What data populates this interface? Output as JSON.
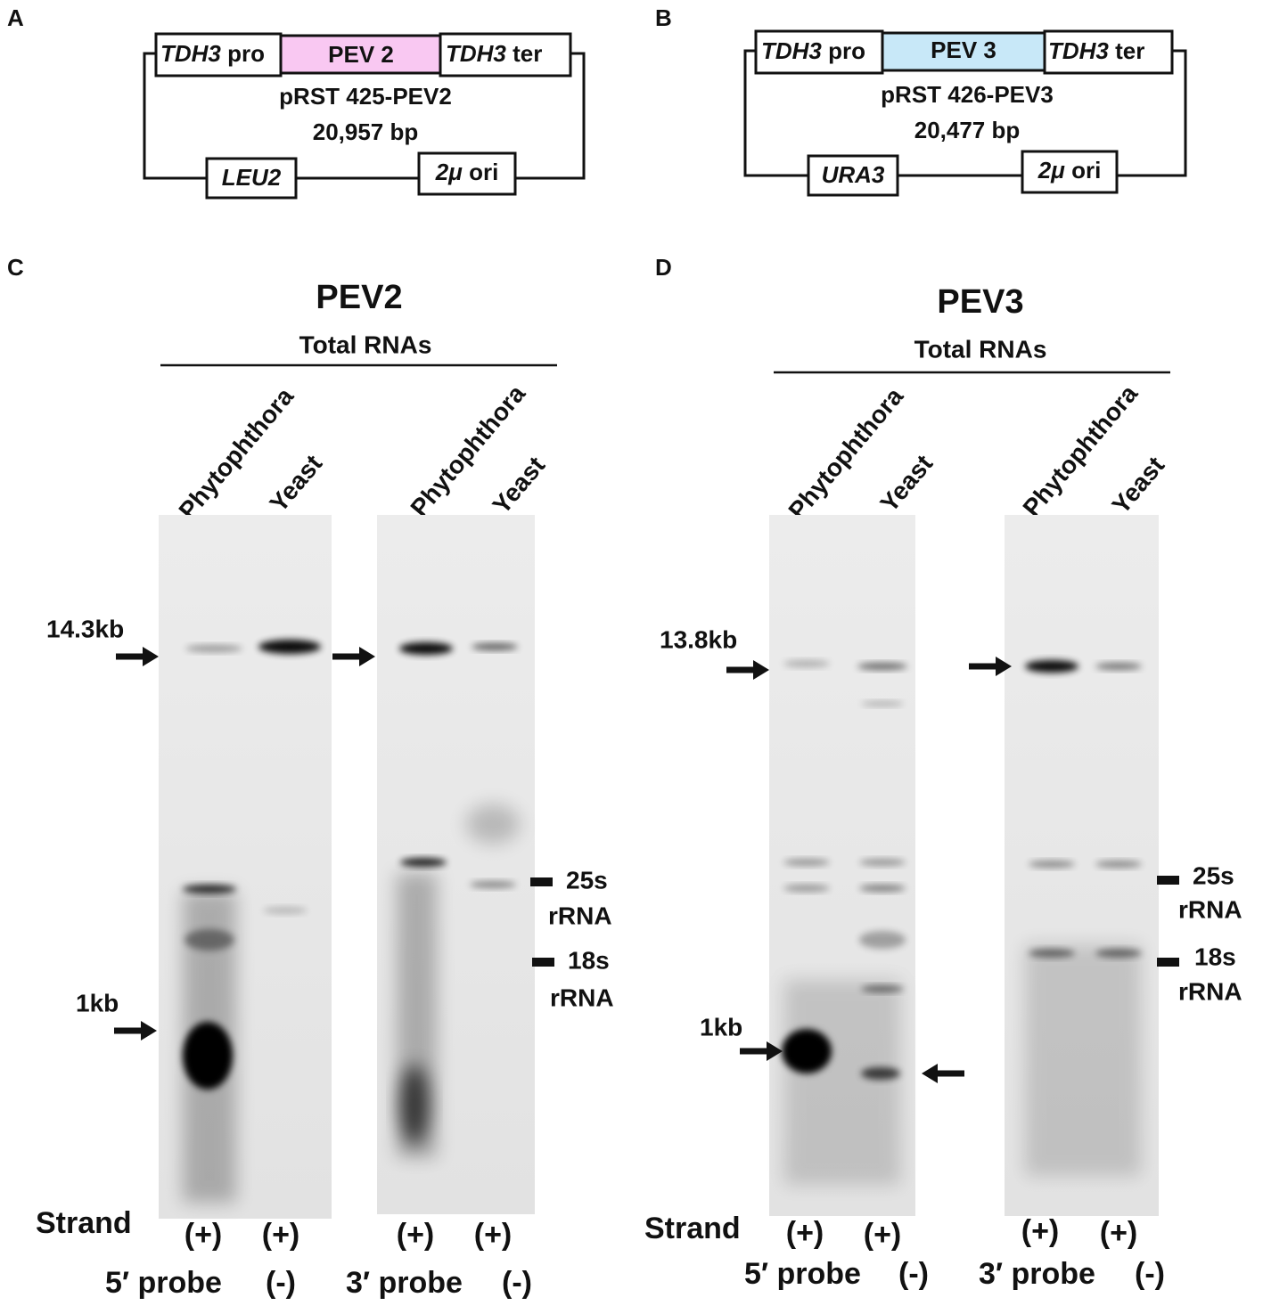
{
  "panels": [
    {
      "letter": "A",
      "promoter": {
        "gene": "TDH3",
        "suffix": "pro"
      },
      "insert": "PEV 2",
      "terminator": {
        "gene": "TDH3",
        "suffix": "ter"
      },
      "plasmid": "pRST 425-PEV2",
      "size": "20,957 bp",
      "marker": "LEU2",
      "origin": {
        "prefix": "2μ",
        "suffix": "ori"
      }
    },
    {
      "letter": "B",
      "promoter": {
        "gene": "TDH3",
        "suffix": "pro"
      },
      "insert": "PEV 3",
      "terminator": {
        "gene": "TDH3",
        "suffix": "ter"
      },
      "plasmid": "pRST 426-PEV3",
      "size": "20,477 bp",
      "marker": "URA3",
      "origin": {
        "prefix": "2μ",
        "suffix": "ori"
      }
    }
  ],
  "blots": [
    {
      "letter": "C",
      "title": "PEV2",
      "subtitle": "Total RNAs",
      "lanes": [
        "Phytophthora",
        "Yeast",
        "Phytophthora",
        "Yeast"
      ],
      "size_markers": [
        "14.3kb",
        "1kb"
      ],
      "rrna": [
        {
          "name": "25s",
          "label": "rRNA"
        },
        {
          "name": "18s",
          "label": "rRNA"
        }
      ],
      "strand_label": "Strand",
      "strands": [
        "(+)",
        "(+)",
        "(+)",
        "(+)"
      ],
      "probes": [
        {
          "name": "5′ probe",
          "sign": "(-)"
        },
        {
          "name": "3′ probe",
          "sign": "(-)"
        }
      ]
    },
    {
      "letter": "D",
      "title": "PEV3",
      "subtitle": "Total RNAs",
      "lanes": [
        "Phytophthora",
        "Yeast",
        "Phytophthora",
        "Yeast"
      ],
      "size_markers": [
        "13.8kb",
        "1kb"
      ],
      "rrna": [
        {
          "name": "25s",
          "label": "rRNA"
        },
        {
          "name": "18s",
          "label": "rRNA"
        }
      ],
      "strand_label": "Strand",
      "strands": [
        "(+)",
        "(+)",
        "(+)",
        "(+)"
      ],
      "probes": [
        {
          "name": "5′ probe",
          "sign": "(-)"
        },
        {
          "name": "3′ probe",
          "sign": "(-)"
        }
      ]
    }
  ]
}
